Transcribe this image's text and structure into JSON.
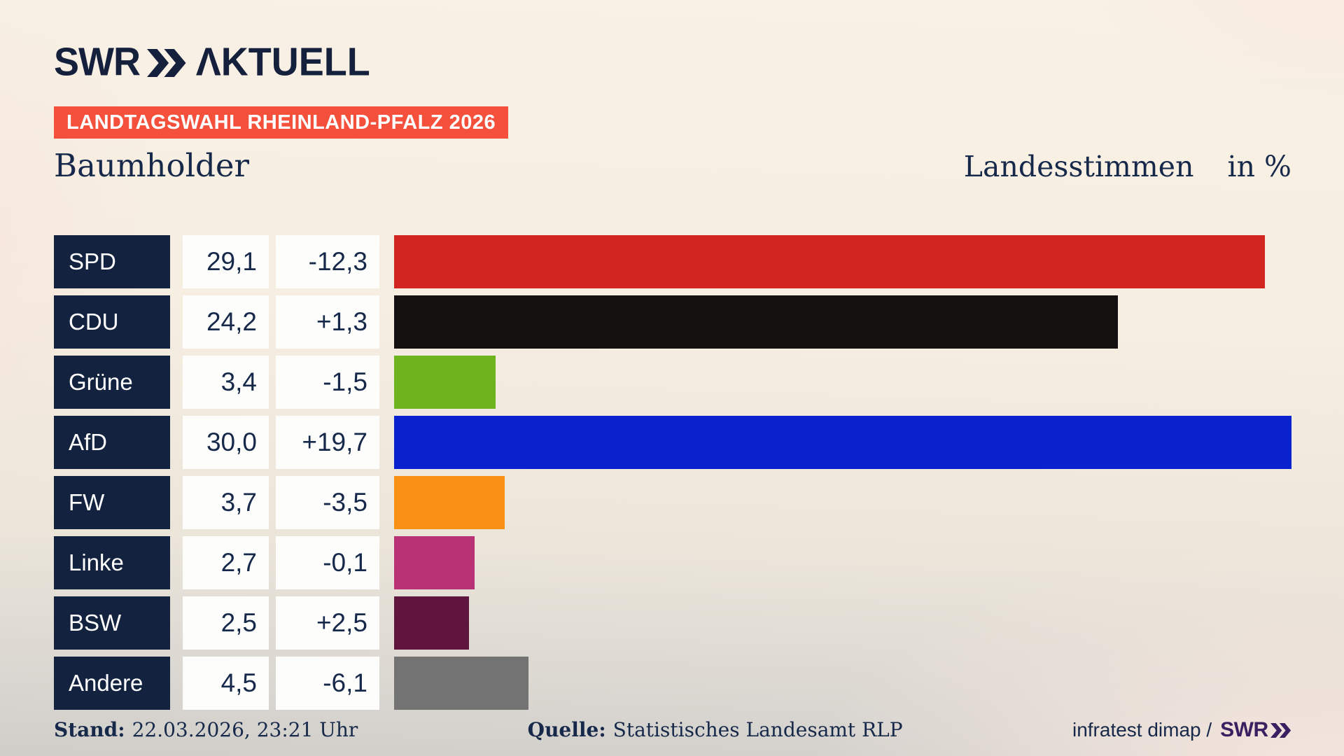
{
  "header": {
    "logo": {
      "brand": "SWR",
      "suffix": "ΛKTUELL"
    },
    "banner": "LANDTAGSWAHL RHEINLAND-PFALZ 2026"
  },
  "title": {
    "left": "Baumholder",
    "right_label": "Landesstimmen",
    "right_unit": "in %"
  },
  "chart_data": {
    "type": "bar",
    "orientation": "horizontal",
    "title": "Baumholder",
    "value_axis_label": "Landesstimmen in %",
    "xlim": [
      0,
      30
    ],
    "grid": false,
    "legend": false,
    "categories": [
      "SPD",
      "CDU",
      "Grüne",
      "AfD",
      "FW",
      "Linke",
      "BSW",
      "Andere"
    ],
    "values": [
      29.1,
      24.2,
      3.4,
      30.0,
      3.7,
      2.7,
      2.5,
      4.5
    ],
    "value_labels": [
      "29,1",
      "24,2",
      "3,4",
      "30,0",
      "3,7",
      "2,7",
      "2,5",
      "4,5"
    ],
    "changes": [
      -12.3,
      1.3,
      -1.5,
      19.7,
      -3.5,
      -0.1,
      2.5,
      -6.1
    ],
    "change_labels": [
      "-12,3",
      "+1,3",
      "-1,5",
      "+19,7",
      "-3,5",
      "-0,1",
      "+2,5",
      "-6,1"
    ],
    "bar_colors": [
      "#d22420",
      "#141210",
      "#6db41e",
      "#0a22cd",
      "#fa9114",
      "#b93275",
      "#5f153d",
      "#737373"
    ]
  },
  "footer": {
    "stand_label": "Stand:",
    "stand_value": "22.03.2026, 23:21 Uhr",
    "quelle_label": "Quelle:",
    "quelle_value": "Statistisches Landesamt RLP",
    "credit_text": "infratest dimap /",
    "credit_brand": "SWR"
  },
  "colors": {
    "navy": "#17294a",
    "label_box_navy": "#13233f",
    "banner_red": "#f4503b",
    "credit_purple": "#3a2060",
    "value_box_white": "#fdfdfc"
  }
}
